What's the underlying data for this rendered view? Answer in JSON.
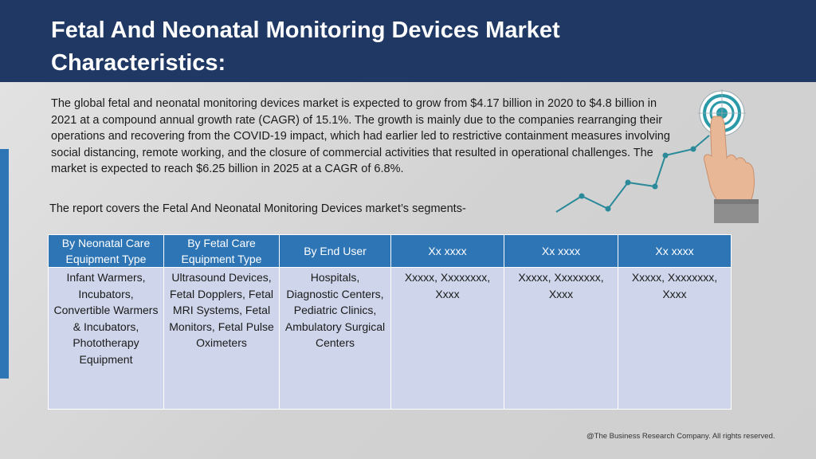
{
  "header": {
    "title": "Fetal And Neonatal Monitoring Devices Market Characteristics:"
  },
  "body": {
    "paragraph": "The global fetal and neonatal monitoring devices market is expected to grow from $4.17 billion in 2020 to $4.8 billion in 2021 at a compound annual growth rate (CAGR) of 15.1%. The growth is mainly due to the companies rearranging their operations and recovering from the COVID-19 impact, which had earlier led to restrictive containment measures involving social distancing, remote working, and the closure of commercial activities that resulted in operational challenges. The market is expected to reach $6.25 billion in 2025 at a CAGR of 6.8%.",
    "report_line": "The report covers the Fetal And Neonatal Monitoring Devices market’s segments-"
  },
  "segments": {
    "headers": [
      "By Neonatal Care Equipment Type",
      "By Fetal Care Equipment Type",
      "By End User",
      "Xx xxxx",
      "Xx xxxx",
      "Xx xxxx"
    ],
    "cells": [
      "Infant Warmers, Incubators, Convertible Warmers & Incubators, Phototherapy Equipment",
      "Ultrasound Devices, Fetal Dopplers, Fetal MRI Systems, Fetal Monitors, Fetal Pulse Oximeters",
      "Hospitals, Diagnostic Centers, Pediatric Clinics, Ambulatory Surgical Centers",
      "Xxxxx, Xxxxxxxx, Xxxx",
      "Xxxxx, Xxxxxxxx, Xxxx",
      "Xxxxx, Xxxxxxxx, Xxxx"
    ]
  },
  "footer": {
    "copyright": "@The Business Research Company. All rights reserved."
  },
  "colors": {
    "header_bg": "#1f3864",
    "table_header_bg": "#2e75b6",
    "table_cell_bg": "#cfd5ea",
    "accent": "#2e75b6",
    "chart_line": "#2a8a9a"
  },
  "icons": {
    "graphic": "finger-touching-target-growth-chart-icon"
  }
}
